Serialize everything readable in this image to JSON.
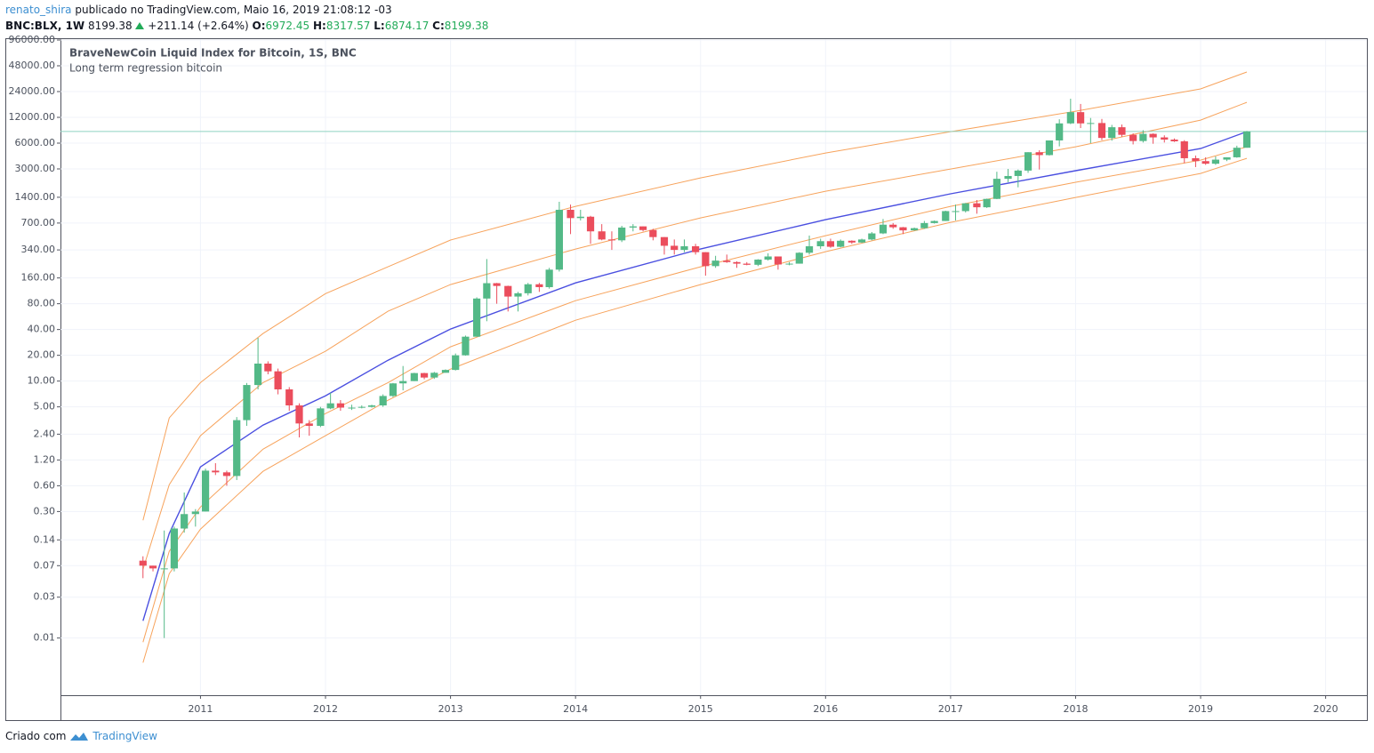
{
  "header": {
    "user": "renato_shira",
    "published": "publicado no TradingView.com, Maio 16, 2019 21:08:12 -03",
    "symbol": "BNC:BLX, 1W",
    "price": "8199.38",
    "change": "+211.14 (+2.64%)",
    "open_label": "O:",
    "open": "6972.45",
    "high_label": "H:",
    "high": "8317.57",
    "low_label": "L:",
    "low": "6874.17",
    "close_label": "C:",
    "close": "8199.38"
  },
  "footer": {
    "created": "Criado com",
    "brand": "TradingView"
  },
  "chart_data": {
    "type": "candlestick",
    "title": "BraveNewCoin Liquid Index for Bitcoin, 1S, BNC",
    "subtitle": "Long term regression bitcoin",
    "up_color": "#53b987",
    "down_color": "#eb4d5c",
    "last_price_line_color": "#8fd3c0",
    "log_scale": true,
    "grid": true,
    "x": [
      2010.54,
      2010.62,
      2010.71,
      2010.79,
      2010.87,
      2010.96,
      2011.04,
      2011.12,
      2011.21,
      2011.29,
      2011.37,
      2011.46,
      2011.54,
      2011.62,
      2011.71,
      2011.79,
      2011.87,
      2011.96,
      2012.04,
      2012.12,
      2012.21,
      2012.29,
      2012.37,
      2012.46,
      2012.54,
      2012.62,
      2012.71,
      2012.79,
      2012.87,
      2012.96,
      2013.04,
      2013.12,
      2013.21,
      2013.29,
      2013.37,
      2013.46,
      2013.54,
      2013.62,
      2013.71,
      2013.79,
      2013.87,
      2013.96,
      2014.04,
      2014.12,
      2014.21,
      2014.29,
      2014.37,
      2014.46,
      2014.54,
      2014.62,
      2014.71,
      2014.79,
      2014.87,
      2014.96,
      2015.04,
      2015.12,
      2015.21,
      2015.29,
      2015.37,
      2015.46,
      2015.54,
      2015.62,
      2015.71,
      2015.79,
      2015.87,
      2015.96,
      2016.04,
      2016.12,
      2016.21,
      2016.29,
      2016.37,
      2016.46,
      2016.54,
      2016.62,
      2016.71,
      2016.79,
      2016.87,
      2016.96,
      2017.04,
      2017.12,
      2017.21,
      2017.29,
      2017.37,
      2017.46,
      2017.54,
      2017.62,
      2017.71,
      2017.79,
      2017.87,
      2017.96,
      2018.04,
      2018.12,
      2018.21,
      2018.29,
      2018.37,
      2018.46,
      2018.54,
      2018.62,
      2018.71,
      2018.79,
      2018.87,
      2018.96,
      2019.04,
      2019.12,
      2019.21,
      2019.29,
      2019.37
    ],
    "open": [
      0.08,
      0.07,
      0.065,
      0.065,
      0.19,
      0.28,
      0.3,
      0.9,
      0.86,
      0.78,
      3.5,
      9,
      16,
      13,
      8,
      5.2,
      3.2,
      3,
      4.8,
      5.5,
      4.9,
      4.9,
      5.0,
      5.2,
      6.7,
      9.4,
      10,
      12.4,
      11,
      12.5,
      13.5,
      20,
      33,
      92,
      139,
      129,
      97,
      106,
      135,
      125,
      200,
      1000,
      800,
      830,
      560,
      450,
      440,
      620,
      640,
      580,
      480,
      380,
      340,
      375,
      320,
      220,
      255,
      245,
      235,
      228,
      262,
      285,
      230,
      235,
      315,
      375,
      430,
      370,
      435,
      415,
      450,
      530,
      670,
      625,
      575,
      610,
      700,
      740,
      965,
      965,
      1190,
      1070,
      1340,
      2300,
      2480,
      2870,
      4700,
      4350,
      6450,
      10200,
      13800,
      10200,
      10300,
      6900,
      9200,
      7500,
      6350,
      7700,
      7000,
      6600,
      6300,
      4000,
      3700,
      3450,
      3850,
      4100,
      5300
    ],
    "high": [
      0.09,
      0.07,
      0.18,
      0.2,
      0.5,
      0.32,
      0.95,
      1.1,
      0.9,
      3.8,
      9.5,
      32,
      17,
      14,
      8.5,
      5.5,
      3.5,
      5,
      7.3,
      6.0,
      5.3,
      5.2,
      5.3,
      7,
      9.5,
      15,
      12.5,
      12.5,
      12.8,
      13.7,
      21,
      34,
      95,
      266,
      140,
      130,
      110,
      140,
      140,
      210,
      1240,
      1150,
      1000,
      850,
      680,
      560,
      650,
      680,
      640,
      600,
      480,
      450,
      450,
      400,
      320,
      290,
      300,
      250,
      245,
      265,
      310,
      285,
      245,
      320,
      500,
      460,
      460,
      450,
      440,
      460,
      550,
      780,
      700,
      630,
      620,
      740,
      750,
      975,
      1150,
      1200,
      1300,
      1350,
      2780,
      3000,
      2950,
      4700,
      4950,
      6400,
      11400,
      19800,
      17200,
      11800,
      11500,
      9800,
      9900,
      7800,
      8500,
      7800,
      7400,
      6800,
      6500,
      4300,
      4100,
      4200,
      4100,
      5600,
      8320
    ],
    "low": [
      0.05,
      0.06,
      0.01,
      0.06,
      0.17,
      0.2,
      0.3,
      0.8,
      0.6,
      0.7,
      3.0,
      8,
      12,
      7,
      4.5,
      2.2,
      2.3,
      2.9,
      4.7,
      4.5,
      4.6,
      4.8,
      4.9,
      5,
      6.5,
      7.8,
      10,
      10.5,
      10.6,
      12.5,
      13.3,
      19.8,
      33,
      50,
      80,
      65,
      65,
      100,
      110,
      120,
      190,
      520,
      750,
      400,
      440,
      340,
      420,
      560,
      560,
      440,
      300,
      300,
      320,
      300,
      170,
      210,
      240,
      210,
      225,
      220,
      255,
      200,
      225,
      235,
      300,
      350,
      360,
      365,
      400,
      410,
      440,
      520,
      600,
      520,
      570,
      600,
      690,
      740,
      750,
      930,
      900,
      1050,
      1330,
      2100,
      1830,
      2700,
      2950,
      4300,
      5500,
      10000,
      9000,
      6000,
      6500,
      6400,
      7100,
      5800,
      6100,
      5900,
      6100,
      6200,
      3500,
      3150,
      3350,
      3350,
      3700,
      4050,
      5300
    ],
    "close": [
      0.07,
      0.065,
      0.065,
      0.19,
      0.28,
      0.3,
      0.9,
      0.86,
      0.78,
      3.5,
      9,
      16,
      13,
      8,
      5.2,
      3.2,
      3,
      4.8,
      5.5,
      4.9,
      4.9,
      5.0,
      5.2,
      6.7,
      9.4,
      10,
      12.4,
      11,
      12.5,
      13.5,
      20,
      33,
      92,
      139,
      129,
      97,
      106,
      135,
      125,
      200,
      1000,
      800,
      830,
      560,
      450,
      440,
      620,
      640,
      580,
      480,
      380,
      340,
      375,
      320,
      220,
      255,
      245,
      235,
      228,
      262,
      285,
      230,
      235,
      315,
      375,
      430,
      370,
      435,
      415,
      450,
      530,
      670,
      625,
      575,
      610,
      700,
      740,
      965,
      965,
      1190,
      1070,
      1340,
      2300,
      2480,
      2870,
      4700,
      4350,
      6450,
      10200,
      13800,
      10200,
      10300,
      6900,
      9200,
      7500,
      6350,
      7700,
      7000,
      6600,
      6300,
      4000,
      3700,
      3450,
      3850,
      4100,
      5300,
      8199.38
    ],
    "bands": {
      "x": [
        2010.54,
        2010.75,
        2011,
        2011.5,
        2012,
        2012.5,
        2013,
        2014,
        2015,
        2016,
        2017,
        2018,
        2019,
        2019.37
      ],
      "lines": [
        {
          "color": "#f7a35c",
          "values": [
            0.237,
            3.71,
            9.6,
            35.9,
            105,
            216,
            443,
            1096,
            2355,
            4600,
            8170,
            14160,
            25760,
            40550
          ]
        },
        {
          "color": "#f7a35c",
          "values": [
            0.0635,
            0.617,
            2.3,
            9.6,
            22.3,
            65.3,
            134,
            348,
            804,
            1648,
            2992,
            5445,
            11140,
            17990
          ]
        },
        {
          "color": "#4a4fe0",
          "values": [
            0.0159,
            0.166,
            0.995,
            3.06,
            6.73,
            17.5,
            40.5,
            140,
            348,
            766,
            1535,
            2858,
            5190,
            8170
          ]
        },
        {
          "color": "#f7a35c",
          "values": [
            0.00895,
            0.103,
            0.339,
            1.6,
            4.18,
            9.6,
            25.1,
            86.9,
            216,
            498,
            1096,
            2094,
            3802,
            5445
          ]
        },
        {
          "color": "#f7a35c",
          "values": [
            0.00516,
            0.0564,
            0.187,
            0.883,
            2.3,
            5.97,
            13.8,
            51.4,
            134,
            324,
            713,
            1393,
            2655,
            3990
          ]
        }
      ]
    },
    "xlim": [
      2009.88,
      2020.33
    ],
    "xticks": [
      2011,
      2012,
      2013,
      2014,
      2015,
      2016,
      2017,
      2018,
      2019,
      2020
    ],
    "ylim": [
      0.00215,
      98300
    ],
    "yticks": [
      {
        "value": 96000,
        "label": "96000.00"
      },
      {
        "value": 48000,
        "label": "48000.00"
      },
      {
        "value": 24000,
        "label": "24000.00"
      },
      {
        "value": 12000,
        "label": "12000.00"
      },
      {
        "value": 6000,
        "label": "6000.00"
      },
      {
        "value": 3000,
        "label": "3000.00"
      },
      {
        "value": 1400,
        "label": "1400.00"
      },
      {
        "value": 700,
        "label": "700.00"
      },
      {
        "value": 340,
        "label": "340.00"
      },
      {
        "value": 160,
        "label": "160.00"
      },
      {
        "value": 80,
        "label": "80.00"
      },
      {
        "value": 40,
        "label": "40.00"
      },
      {
        "value": 20,
        "label": "20.00"
      },
      {
        "value": 10,
        "label": "10.00"
      },
      {
        "value": 5,
        "label": "5.00"
      },
      {
        "value": 2.4,
        "label": "2.40"
      },
      {
        "value": 1.2,
        "label": "1.20"
      },
      {
        "value": 0.6,
        "label": "0.60"
      },
      {
        "value": 0.3,
        "label": "0.30"
      },
      {
        "value": 0.14,
        "label": "0.14"
      },
      {
        "value": 0.07,
        "label": "0.07"
      },
      {
        "value": 0.03,
        "label": "0.03"
      },
      {
        "value": 0.01,
        "label": "0.01"
      }
    ]
  }
}
